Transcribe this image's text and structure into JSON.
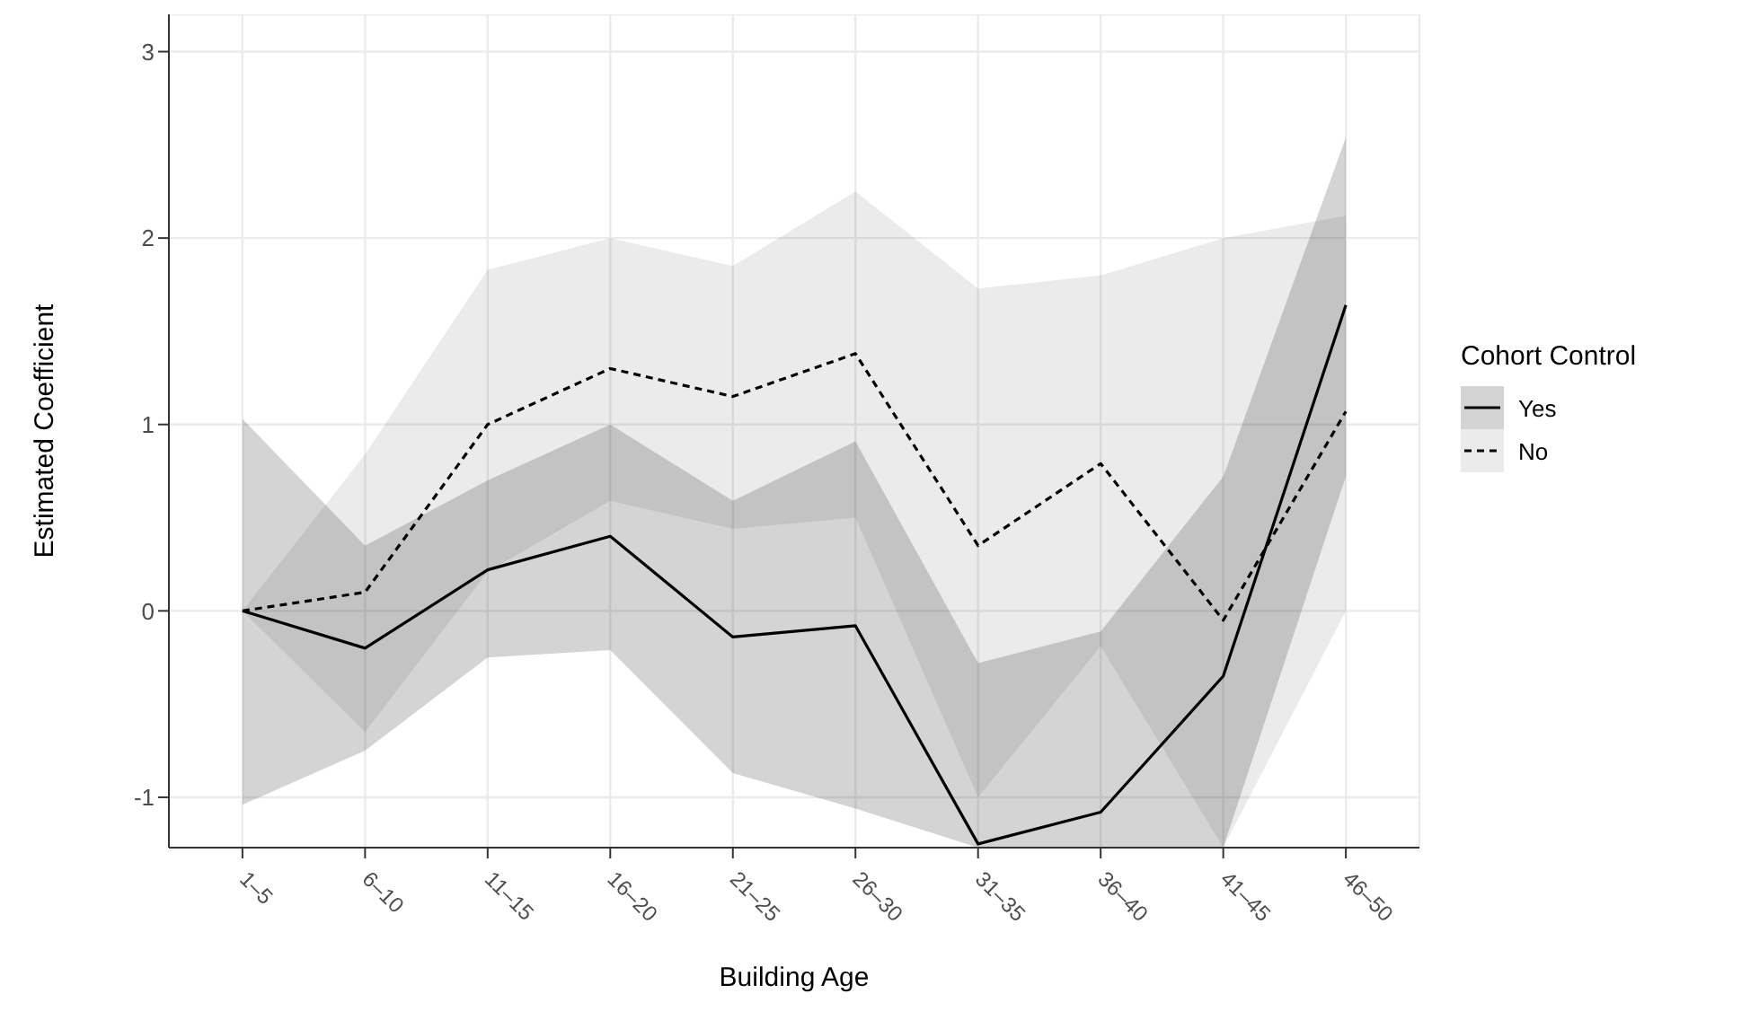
{
  "chart_data": {
    "type": "line",
    "xlabel": "Building Age",
    "ylabel": "Estimated Coefficient",
    "legend_title": "Cohort Control",
    "categories": [
      "1–5",
      "6–10",
      "11–15",
      "16–20",
      "21–25",
      "26–30",
      "31–35",
      "36–40",
      "41–45",
      "46–50"
    ],
    "series": [
      {
        "name": "Yes",
        "color": "#000000",
        "line_style": "solid",
        "values": [
          0,
          -0.2,
          0.22,
          0.4,
          -0.14,
          -0.08,
          -1.25,
          -1.08,
          -0.35,
          1.64
        ],
        "lower": [
          -1.04,
          -0.75,
          -0.25,
          -0.21,
          -0.87,
          -1.06,
          -1.27,
          -1.27,
          -1.27,
          0.72
        ],
        "upper": [
          1.03,
          0.35,
          0.7,
          1.0,
          0.59,
          0.91,
          -0.28,
          -0.11,
          0.72,
          2.54
        ]
      },
      {
        "name": "No",
        "color": "#000000",
        "line_style": "dashed",
        "values": [
          0,
          0.1,
          1.0,
          1.3,
          1.15,
          1.38,
          0.35,
          0.79,
          -0.05,
          1.07
        ],
        "lower": [
          0,
          -0.65,
          0.21,
          0.59,
          0.44,
          0.5,
          -1.0,
          -0.19,
          -1.27,
          0.0
        ],
        "upper": [
          0,
          0.84,
          1.83,
          2.0,
          1.85,
          2.25,
          1.73,
          1.8,
          2.0,
          2.12
        ]
      }
    ],
    "ylim": [
      -1.27,
      3.2
    ],
    "yticks": [
      -1,
      0,
      1,
      2,
      3
    ],
    "grid": true,
    "legend": "right"
  }
}
